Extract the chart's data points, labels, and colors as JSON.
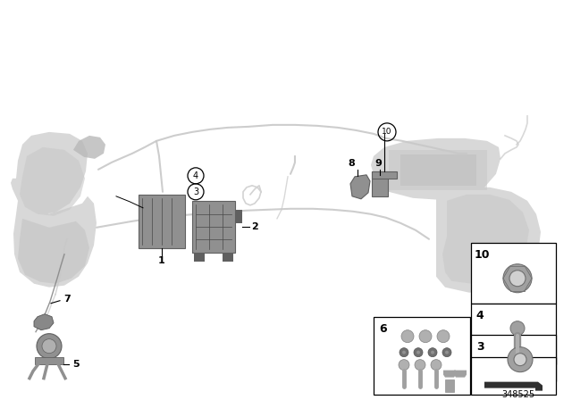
{
  "background_color": "#ffffff",
  "fig_width": 6.4,
  "fig_height": 4.48,
  "dpi": 100,
  "diagram_number": "348525",
  "ghost_color": "#d8d8d8",
  "ghost_edge": "#cccccc",
  "part_color": "#909090",
  "part_edge": "#606060",
  "pipe_color": "#c8c8c8",
  "label_color": "#000000",
  "legend_border": "#000000",
  "legend_label_fontsize": 9,
  "number_fontsize": 8,
  "diagram_num_fontsize": 7
}
